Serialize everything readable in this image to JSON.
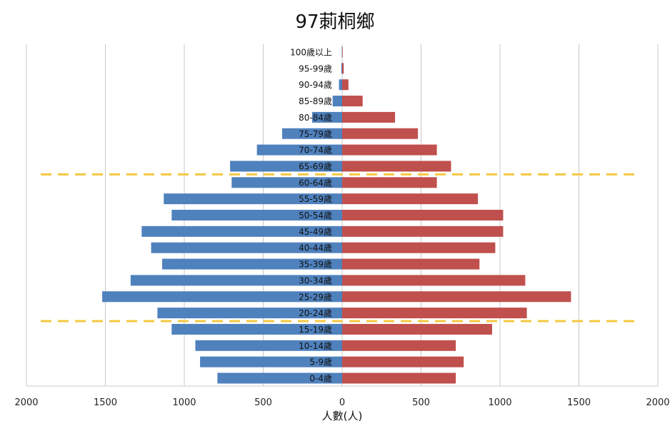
{
  "chart_data": {
    "type": "bar",
    "orientation": "horizontal-pyramid",
    "title": "97莿桐鄉",
    "xlabel": "人數(人)",
    "xlim": [
      -2000,
      2000
    ],
    "xticks": [
      -2000,
      -1500,
      -1000,
      -500,
      0,
      500,
      1000,
      1500,
      2000
    ],
    "xtick_labels": [
      "2000",
      "1500",
      "1000",
      "500",
      "0",
      "500",
      "1000",
      "1500",
      "2000"
    ],
    "categories": [
      "0-4歲",
      "5-9歲",
      "10-14歲",
      "15-19歲",
      "20-24歲",
      "25-29歲",
      "30-34歲",
      "35-39歲",
      "40-44歲",
      "45-49歲",
      "50-54歲",
      "55-59歲",
      "60-64歲",
      "65-69歲",
      "70-74歲",
      "75-79歲",
      "80-84歲",
      "85-89歲",
      "90-94歲",
      "95-99歲",
      "100歲以上"
    ],
    "series": [
      {
        "side": "left",
        "color": "#4f81bd",
        "values": [
          790,
          900,
          930,
          1080,
          1170,
          1520,
          1340,
          1140,
          1210,
          1270,
          1080,
          1130,
          700,
          710,
          540,
          380,
          190,
          60,
          20,
          5,
          2
        ]
      },
      {
        "side": "right",
        "color": "#c0504d",
        "values": [
          720,
          770,
          720,
          950,
          1170,
          1450,
          1160,
          870,
          970,
          1020,
          1020,
          860,
          600,
          690,
          600,
          480,
          335,
          130,
          40,
          10,
          3
        ]
      }
    ],
    "grid": true,
    "reference_lines": [
      {
        "style": "dashed",
        "color": "#f5c842",
        "between_categories": [
          "15-19歲",
          "20-24歲"
        ]
      },
      {
        "style": "dashed",
        "color": "#f5c842",
        "between_categories": [
          "60-64歲",
          "65-69歲"
        ]
      }
    ]
  }
}
